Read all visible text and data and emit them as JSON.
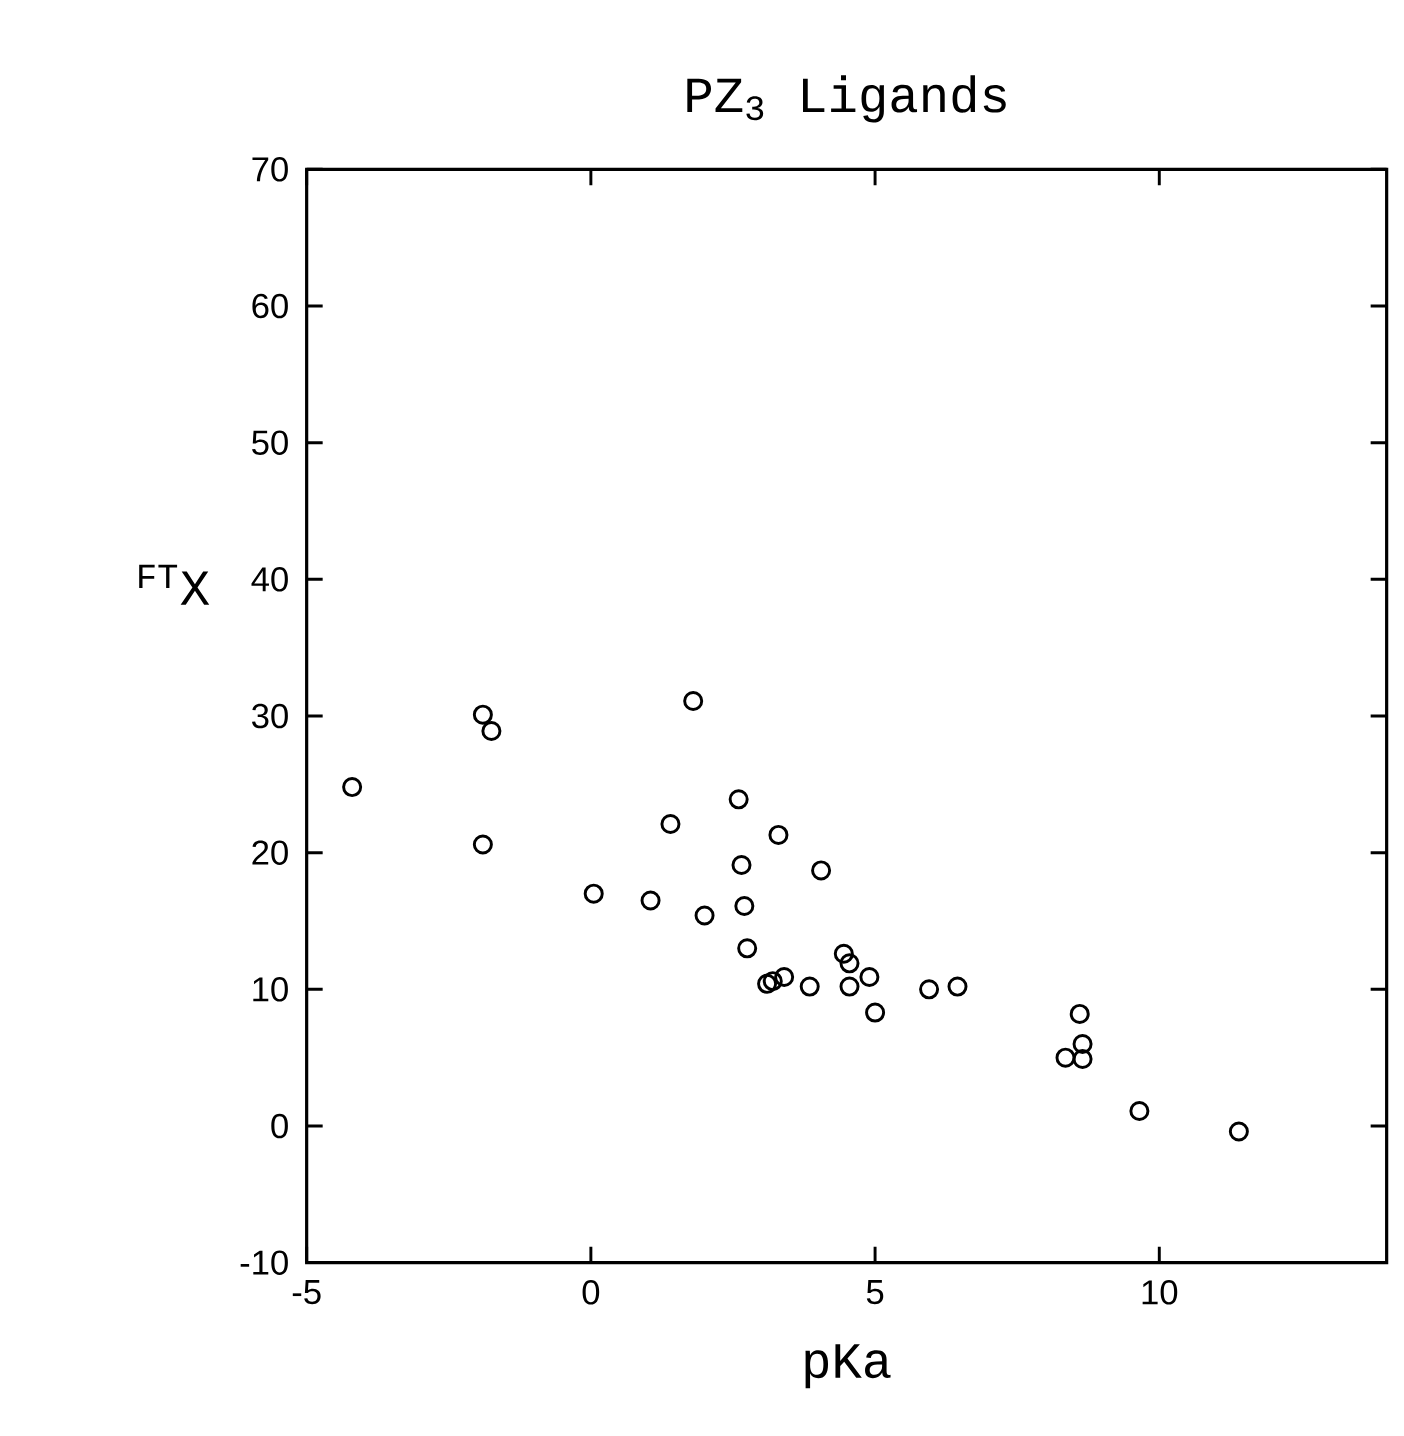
{
  "chart_data": {
    "type": "scatter",
    "title": "PZ$_{3}$ Ligands",
    "xlabel": "pKa",
    "ylabel": "$^{FT}$X",
    "xlim": [
      -5,
      14
    ],
    "ylim": [
      -10,
      70
    ],
    "xticks": [
      -5,
      0,
      5,
      10
    ],
    "yticks": [
      -10,
      0,
      10,
      20,
      30,
      40,
      50,
      60,
      70
    ],
    "marker": "circle",
    "series": [
      {
        "color": "#000000",
        "x": [
          -4.2,
          -1.9,
          -1.75,
          -1.9,
          1.8,
          1.4,
          2.6,
          3.3,
          2.65,
          4.05,
          0.05,
          1.05,
          2.0,
          2.7,
          2.75,
          3.1,
          3.2,
          3.4,
          3.85,
          4.45,
          4.55,
          4.55,
          4.9,
          5.0,
          5.95,
          6.45,
          8.6,
          8.65,
          8.35,
          8.65,
          9.65,
          11.4
        ],
        "values": [
          24.8,
          30.1,
          28.9,
          20.6,
          31.1,
          22.1,
          23.9,
          21.3,
          19.1,
          18.7,
          17.0,
          16.5,
          15.4,
          16.1,
          13.0,
          10.4,
          10.6,
          10.9,
          10.2,
          12.6,
          11.9,
          10.2,
          10.9,
          8.3,
          10.0,
          10.2,
          8.2,
          6.0,
          5.0,
          4.9,
          1.1,
          -0.4
        ]
      }
    ]
  }
}
